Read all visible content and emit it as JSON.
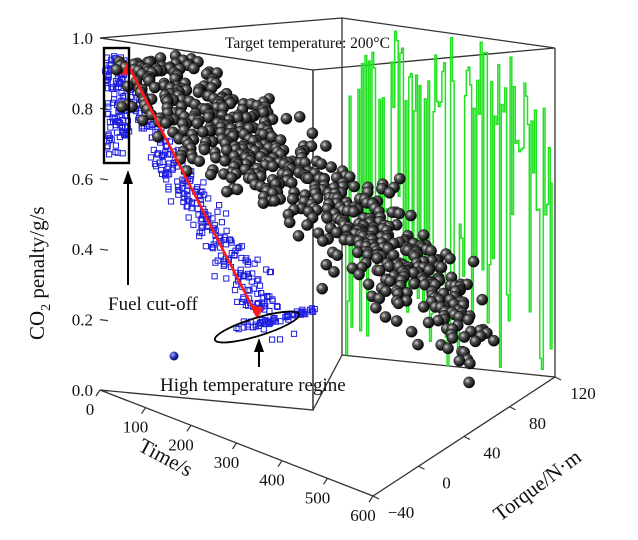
{
  "chart_data": {
    "type": "scatter",
    "title": "Target temperature: 200°C",
    "axes": {
      "x": {
        "label": "Time/s",
        "ticks": [
          "0",
          "100",
          "200",
          "300",
          "400",
          "500",
          "600"
        ],
        "range": [
          0,
          600
        ]
      },
      "y": {
        "label": "Torque/N·m",
        "ticks": [
          "−40",
          "0",
          "40",
          "80",
          "120"
        ],
        "range": [
          -40,
          120
        ]
      },
      "z": {
        "label_main": "CO",
        "label_sub": "2",
        "label_rest": " penalty/g/s",
        "ticks": [
          "0.0",
          "0.2",
          "0.4",
          "0.6",
          "0.8",
          "1.0"
        ],
        "range": [
          0,
          1.0
        ]
      }
    },
    "annotations": {
      "fuel_cutoff": "Fuel cut-off",
      "high_temp": "High temperature regine"
    },
    "series": [
      {
        "kind": "black-spheres",
        "color": "#000000",
        "count": 650
      },
      {
        "kind": "blue-open-squares",
        "color": "#1f1fe0",
        "count": 430
      },
      {
        "kind": "green-torque-trace",
        "color": "#22e022",
        "count": 120
      },
      {
        "kind": "red-trend-line",
        "color": "#ff1a1a",
        "points": 2
      }
    ],
    "grid": false,
    "legend": "none"
  }
}
